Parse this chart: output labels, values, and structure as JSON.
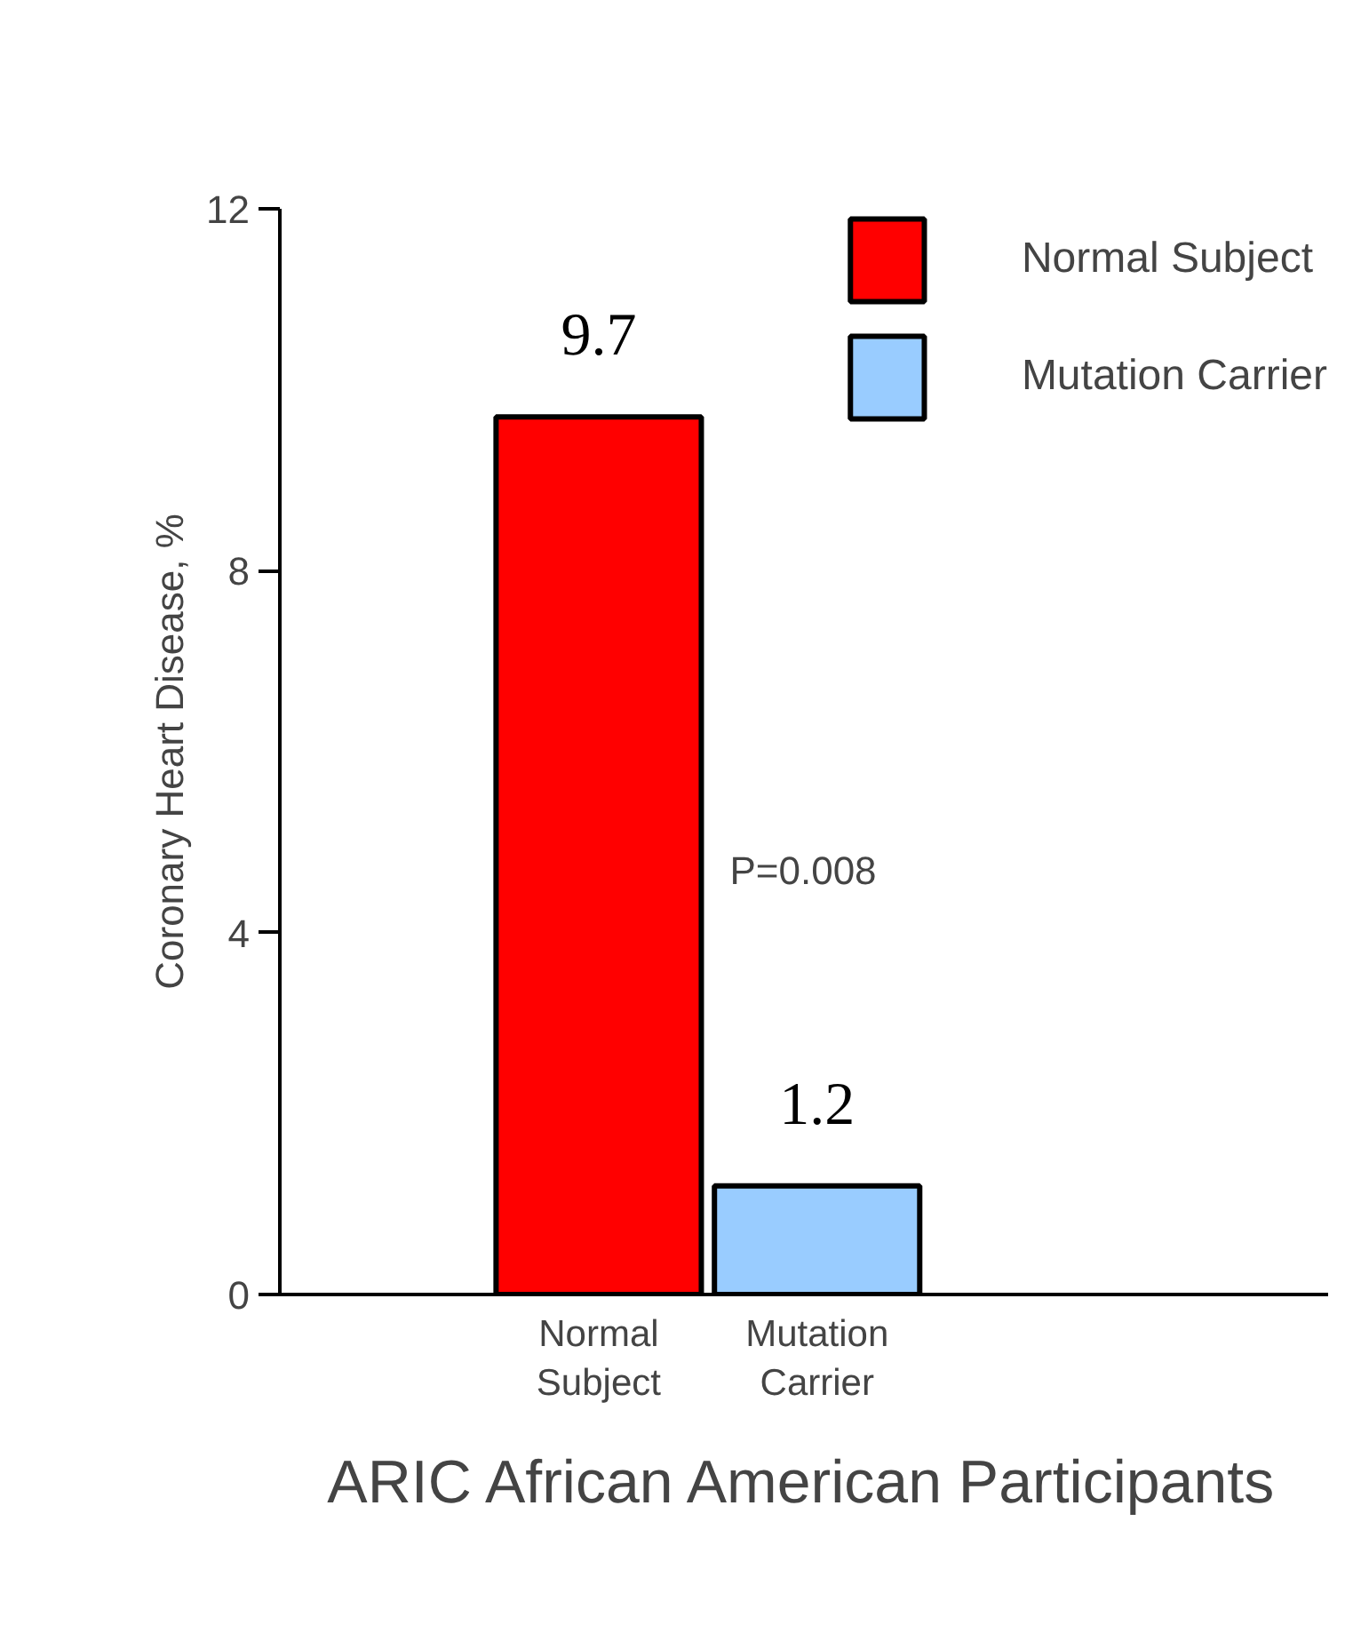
{
  "chart_data": {
    "type": "bar",
    "title": "ARIC African American Participants",
    "ylabel": "Coronary Heart Disease, %",
    "categories": [
      "Normal Subject",
      "Mutation Carrier"
    ],
    "series": [
      {
        "name": "Normal Subject",
        "color": "#ff0000",
        "values": [
          9.7,
          null
        ]
      },
      {
        "name": "Mutation Carrier",
        "color": "#99ccff",
        "values": [
          null,
          1.2
        ]
      }
    ],
    "ylim": [
      0,
      12
    ],
    "yticks": [
      0,
      4,
      8,
      12
    ],
    "data_labels": true,
    "legend": "top right",
    "grid": false,
    "annotations": [
      "P=0.008"
    ]
  }
}
